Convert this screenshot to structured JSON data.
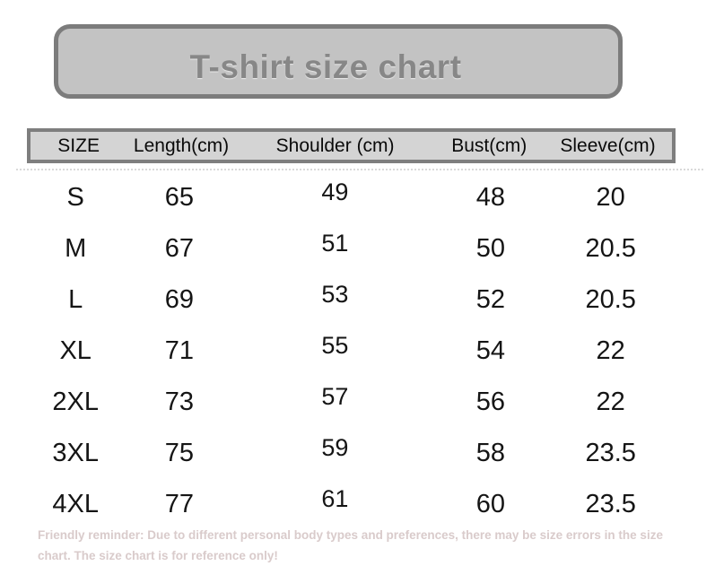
{
  "chart_data": {
    "type": "table",
    "title": "T-shirt size chart",
    "columns": [
      "SIZE",
      "Length(cm)",
      "Shoulder (cm)",
      "Bust(cm)",
      "Sleeve(cm)"
    ],
    "rows": [
      [
        "S",
        65,
        49,
        48,
        20
      ],
      [
        "M",
        67,
        51,
        50,
        20.5
      ],
      [
        "L",
        69,
        53,
        52,
        20.5
      ],
      [
        "XL",
        71,
        55,
        54,
        22
      ],
      [
        "2XL",
        73,
        57,
        56,
        22
      ],
      [
        "3XL",
        75,
        59,
        58,
        23.5
      ],
      [
        "4XL",
        77,
        61,
        60,
        23.5
      ]
    ],
    "units": "cm"
  },
  "footer": {
    "line1": "Friendly reminder: Due to different personal body types and preferences, there may be size errors in the size",
    "line2": "chart. The size chart is for reference only!"
  },
  "colors": {
    "title_box_fill": "#c3c3c3",
    "title_box_border": "#7c7c7c",
    "title_text": "#878787",
    "header_fill": "#d4d4d4",
    "header_border": "#7e7e7e",
    "body_text": "#151515",
    "note_text": "#d9cbcb",
    "background": "#ffffff"
  }
}
